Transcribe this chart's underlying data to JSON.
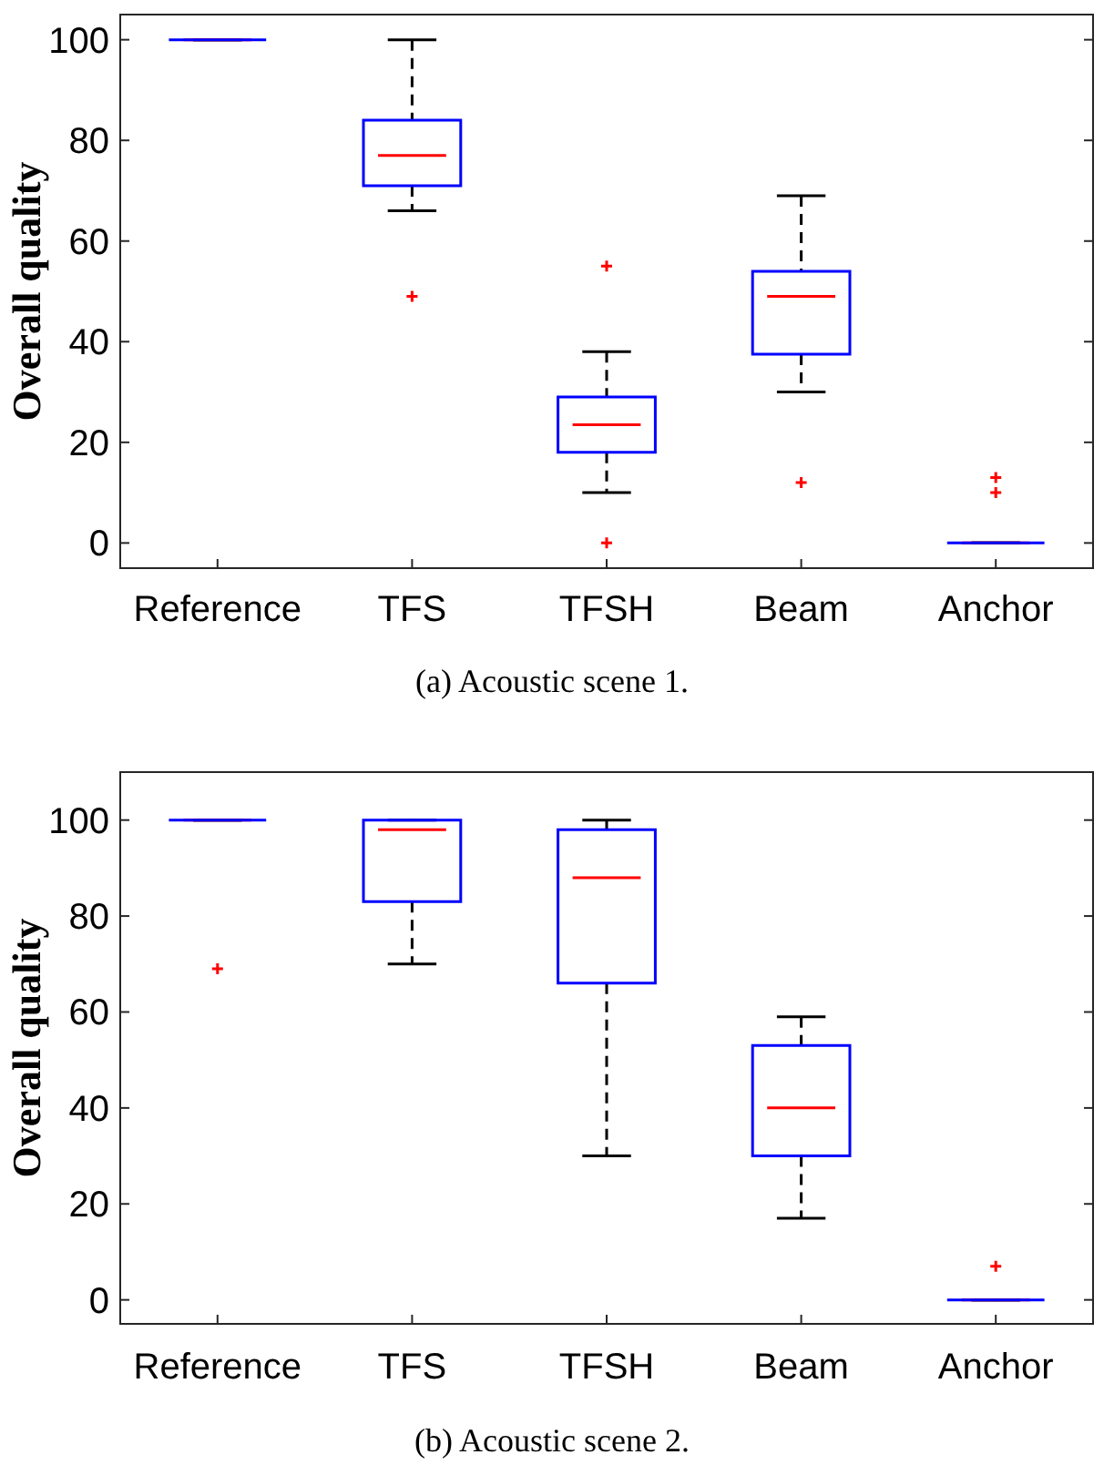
{
  "chart_data": [
    {
      "type": "box",
      "ylabel": "Overall quality",
      "categories": [
        "Reference",
        "TFS",
        "TFSH",
        "Beam",
        "Anchor"
      ],
      "ylim": [
        -5,
        105
      ],
      "yticks": [
        0,
        20,
        40,
        60,
        80,
        100
      ],
      "annotations": [
        "(a) Acoustic scene 1."
      ],
      "color": "#0000ff",
      "boxes": [
        {
          "low": 100,
          "q1": 100,
          "median": 100,
          "q3": 100,
          "high": 100
        },
        {
          "low": 66,
          "q1": 71,
          "median": 77,
          "q3": 84,
          "high": 100,
          "outliers": [
            49
          ]
        },
        {
          "low": 10,
          "q1": 18,
          "median": 23.5,
          "q3": 29,
          "high": 38,
          "outliers": [
            55,
            0
          ]
        },
        {
          "low": 30,
          "q1": 37.5,
          "median": 49,
          "q3": 54,
          "high": 69,
          "outliers": [
            12
          ]
        },
        {
          "low": 0,
          "q1": 0,
          "median": 0,
          "q3": 0,
          "high": 0,
          "outliers": [
            13,
            10
          ]
        }
      ]
    },
    {
      "type": "box",
      "ylabel": "Overall quality",
      "categories": [
        "Reference",
        "TFS",
        "TFSH",
        "Beam",
        "Anchor"
      ],
      "ylim": [
        -5,
        110
      ],
      "yticks": [
        0,
        20,
        40,
        60,
        80,
        100
      ],
      "annotations": [
        "(b) Acoustic scene 2."
      ],
      "color": "#0000ff",
      "boxes": [
        {
          "low": 100,
          "q1": 100,
          "median": 100,
          "q3": 100,
          "high": 100,
          "outliers": [
            69
          ]
        },
        {
          "low": 70,
          "q1": 83,
          "median": 98,
          "q3": 100,
          "high": 100
        },
        {
          "low": 30,
          "q1": 66,
          "median": 88,
          "q3": 98,
          "high": 100
        },
        {
          "low": 17,
          "q1": 30,
          "median": 40,
          "q3": 53,
          "high": 59
        },
        {
          "low": 0,
          "q1": 0,
          "median": 0,
          "q3": 0,
          "high": 0,
          "outliers": [
            7
          ]
        }
      ]
    }
  ]
}
